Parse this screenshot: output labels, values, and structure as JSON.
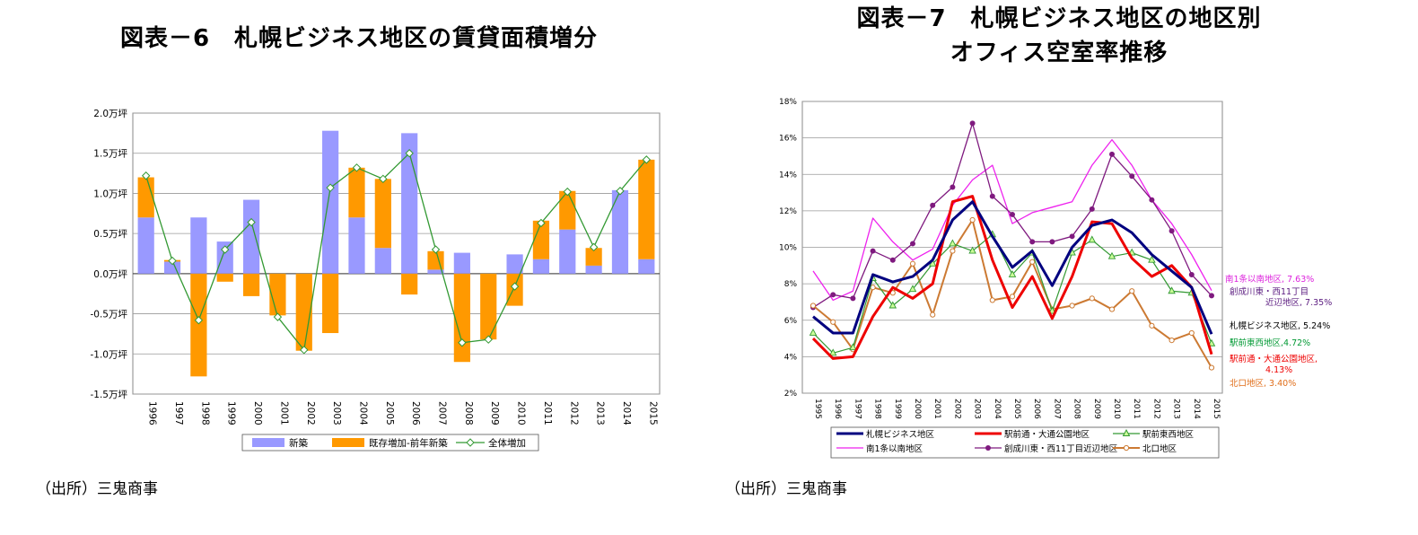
{
  "left": {
    "title": "図表－6　札幌ビジネス地区の賃貸面積増分",
    "source": "（出所）三鬼商事"
  },
  "right": {
    "title_line1": "図表－7　札幌ビジネス地区の地区別",
    "title_line2": "オフィス空室率推移",
    "source": "（出所）三鬼商事"
  },
  "chart_data": [
    {
      "type": "bar",
      "stacked": true,
      "categories": [
        "1996",
        "1997",
        "1998",
        "1999",
        "2000",
        "2001",
        "2002",
        "2003",
        "2004",
        "2005",
        "2006",
        "2007",
        "2008",
        "2009",
        "2010",
        "2011",
        "2012",
        "2013",
        "2014",
        "2015"
      ],
      "y_tick_labels": [
        "2.0万坪",
        "1.5万坪",
        "1.0万坪",
        "0.5万坪",
        "0.0万坪",
        "-0.5万坪",
        "-1.0万坪",
        "-1.5万坪"
      ],
      "ylim": [
        -1.5,
        2.0
      ],
      "grid": true,
      "legend_position": "bottom",
      "series": [
        {
          "name": "新築",
          "kind": "bar",
          "color": "#9999ff",
          "values": [
            0.7,
            0.15,
            0.7,
            0.4,
            0.92,
            0,
            0,
            1.78,
            0.7,
            0.32,
            1.75,
            0.05,
            0.26,
            0,
            0.24,
            0.18,
            0.55,
            0.1,
            1.04,
            0.18
          ]
        },
        {
          "name": "既存増加-前年新築",
          "kind": "bar",
          "color": "#ff9900",
          "values": [
            0.5,
            0.02,
            -1.28,
            -0.1,
            -0.28,
            -0.52,
            -0.96,
            -0.74,
            0.62,
            0.86,
            -0.26,
            0.23,
            -1.1,
            -0.82,
            -0.4,
            0.48,
            0.48,
            0.22,
            0,
            1.24
          ]
        },
        {
          "name": "全体増加",
          "kind": "line",
          "color": "#339933",
          "values": [
            1.22,
            0.16,
            -0.58,
            0.3,
            0.64,
            -0.54,
            -0.95,
            1.07,
            1.32,
            1.18,
            1.5,
            0.3,
            -0.86,
            -0.82,
            -0.16,
            0.63,
            1.02,
            0.33,
            1.03,
            1.42
          ]
        }
      ]
    },
    {
      "type": "line",
      "categories": [
        "1995",
        "1996",
        "1997",
        "1998",
        "1999",
        "2000",
        "2001",
        "2002",
        "2003",
        "2004",
        "2005",
        "2006",
        "2007",
        "2008",
        "2009",
        "2010",
        "2011",
        "2012",
        "2013",
        "2014",
        "2015"
      ],
      "y_tick_labels": [
        "18%",
        "16%",
        "14%",
        "12%",
        "10%",
        "8%",
        "6%",
        "4%",
        "2%"
      ],
      "ylim": [
        2,
        18
      ],
      "grid": true,
      "legend_position": "bottom",
      "series": [
        {
          "name": "札幌ビジネス地区",
          "color": "#00007f",
          "width": 3,
          "marker": "none",
          "values": [
            6.2,
            5.3,
            5.3,
            8.5,
            8.1,
            8.4,
            9.3,
            11.5,
            12.5,
            10.6,
            8.9,
            9.8,
            7.9,
            10.0,
            11.2,
            11.5,
            10.8,
            9.6,
            8.7,
            7.8,
            5.24
          ],
          "end_label": "札幌ビジネス地区, 5.24%",
          "end_label_color": "#000000"
        },
        {
          "name": "駅前通・大通公園地区",
          "color": "#ee0000",
          "width": 3,
          "marker": "none",
          "values": [
            5.0,
            3.9,
            4.0,
            6.2,
            7.8,
            7.2,
            8.0,
            12.5,
            12.8,
            9.3,
            6.7,
            8.4,
            6.1,
            8.4,
            11.4,
            11.3,
            9.4,
            8.4,
            9.0,
            7.8,
            4.13
          ],
          "end_label": "駅前通・大通公園地区,\n4.13%",
          "end_label_color": "#ee0000"
        },
        {
          "name": "駅前東西地区",
          "color": "#339933",
          "width": 1.2,
          "marker": "triangle",
          "values": [
            5.3,
            4.2,
            4.5,
            8.3,
            6.8,
            7.7,
            9.1,
            10.2,
            9.8,
            10.7,
            8.5,
            9.7,
            6.5,
            9.7,
            10.4,
            9.5,
            9.7,
            9.3,
            7.6,
            7.5,
            4.72
          ],
          "end_label": "駅前東西地区,4.72%",
          "end_label_color": "#009933"
        },
        {
          "name": "南1条以南地区",
          "color": "#ee22ee",
          "width": 1.3,
          "marker": "none",
          "values": [
            8.7,
            7.1,
            7.6,
            11.6,
            10.3,
            9.3,
            9.9,
            12.3,
            13.7,
            14.5,
            11.3,
            11.9,
            12.2,
            12.5,
            14.5,
            15.9,
            14.5,
            12.6,
            11.3,
            9.6,
            7.63
          ],
          "end_label": "南1条以南地区, 7.63%",
          "end_label_color": "#dd22dd"
        },
        {
          "name": "創成川東・西11丁目近辺地区",
          "color": "#7f1a7f",
          "width": 1.3,
          "marker": "circle",
          "values": [
            6.7,
            7.4,
            7.2,
            9.8,
            9.3,
            10.2,
            12.3,
            13.3,
            16.8,
            12.8,
            11.8,
            10.3,
            10.3,
            10.6,
            12.1,
            15.1,
            13.9,
            12.6,
            10.9,
            8.5,
            7.35
          ],
          "end_label": "創成川東・西11丁目\n近辺地区, 7.35%",
          "end_label_color": "#5a1a7f"
        },
        {
          "name": "北口地区",
          "color": "#cc7a33",
          "width": 2,
          "marker": "circle-open",
          "values": [
            6.8,
            5.9,
            4.4,
            7.8,
            7.5,
            9.1,
            6.3,
            9.8,
            11.5,
            7.1,
            7.3,
            9.2,
            6.6,
            6.8,
            7.2,
            6.6,
            7.6,
            5.7,
            4.9,
            5.3,
            3.4
          ],
          "end_label": "北口地区, 3.40%",
          "end_label_color": "#e06e1a"
        }
      ]
    }
  ]
}
